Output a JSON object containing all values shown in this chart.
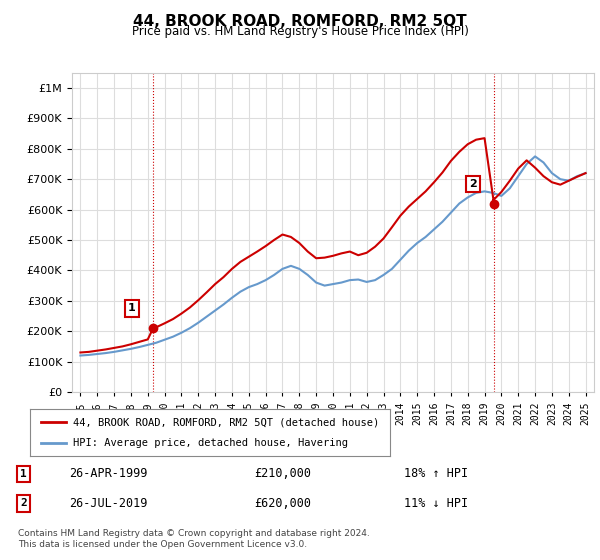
{
  "title": "44, BROOK ROAD, ROMFORD, RM2 5QT",
  "subtitle": "Price paid vs. HM Land Registry's House Price Index (HPI)",
  "legend_entry1": "44, BROOK ROAD, ROMFORD, RM2 5QT (detached house)",
  "legend_entry2": "HPI: Average price, detached house, Havering",
  "sale1_label": "1",
  "sale1_date": "26-APR-1999",
  "sale1_price": "£210,000",
  "sale1_hpi": "18% ↑ HPI",
  "sale2_label": "2",
  "sale2_date": "26-JUL-2019",
  "sale2_price": "£620,000",
  "sale2_hpi": "11% ↓ HPI",
  "footnote": "Contains HM Land Registry data © Crown copyright and database right 2024.\nThis data is licensed under the Open Government Licence v3.0.",
  "red_color": "#cc0000",
  "blue_color": "#6699cc",
  "grid_color": "#dddddd",
  "background_color": "#ffffff",
  "sale1_year": 1999.32,
  "sale1_value": 210000,
  "sale2_year": 2019.56,
  "sale2_value": 620000,
  "ylim": [
    0,
    1050000
  ],
  "xlim": [
    1994.5,
    2025.5
  ],
  "hpi_x": [
    1995,
    1995.5,
    1996,
    1996.5,
    1997,
    1997.5,
    1998,
    1998.5,
    1999,
    1999.5,
    2000,
    2000.5,
    2001,
    2001.5,
    2002,
    2002.5,
    2003,
    2003.5,
    2004,
    2004.5,
    2005,
    2005.5,
    2006,
    2006.5,
    2007,
    2007.5,
    2008,
    2008.5,
    2009,
    2009.5,
    2010,
    2010.5,
    2011,
    2011.5,
    2012,
    2012.5,
    2013,
    2013.5,
    2014,
    2014.5,
    2015,
    2015.5,
    2016,
    2016.5,
    2017,
    2017.5,
    2018,
    2018.5,
    2019,
    2019.5,
    2020,
    2020.5,
    2021,
    2021.5,
    2022,
    2022.5,
    2023,
    2023.5,
    2024,
    2024.5,
    2025
  ],
  "hpi_y": [
    120000,
    122000,
    125000,
    128000,
    132000,
    137000,
    142000,
    148000,
    155000,
    162000,
    172000,
    182000,
    195000,
    210000,
    228000,
    248000,
    268000,
    288000,
    310000,
    330000,
    345000,
    355000,
    368000,
    385000,
    405000,
    415000,
    405000,
    385000,
    360000,
    350000,
    355000,
    360000,
    368000,
    370000,
    362000,
    368000,
    385000,
    405000,
    435000,
    465000,
    490000,
    510000,
    535000,
    560000,
    590000,
    620000,
    640000,
    655000,
    660000,
    655000,
    645000,
    670000,
    710000,
    750000,
    775000,
    755000,
    720000,
    700000,
    695000,
    710000,
    720000
  ],
  "red_x": [
    1995,
    1995.5,
    1996,
    1996.5,
    1997,
    1997.5,
    1998,
    1998.5,
    1999,
    1999.32,
    1999.5,
    2000,
    2000.5,
    2001,
    2001.5,
    2002,
    2002.5,
    2003,
    2003.5,
    2004,
    2004.5,
    2005,
    2005.5,
    2006,
    2006.5,
    2007,
    2007.5,
    2008,
    2008.5,
    2009,
    2009.5,
    2010,
    2010.5,
    2011,
    2011.5,
    2012,
    2012.5,
    2013,
    2013.5,
    2014,
    2014.5,
    2015,
    2015.5,
    2016,
    2016.5,
    2017,
    2017.5,
    2018,
    2018.5,
    2019,
    2019.56,
    2019.5,
    2020,
    2020.5,
    2021,
    2021.5,
    2022,
    2022.5,
    2023,
    2023.5,
    2024,
    2024.5,
    2025
  ],
  "red_y": [
    130000,
    132000,
    136000,
    140000,
    145000,
    150000,
    157000,
    165000,
    173000,
    210000,
    213000,
    226000,
    240000,
    258000,
    278000,
    302000,
    328000,
    355000,
    378000,
    405000,
    428000,
    445000,
    462000,
    480000,
    500000,
    518000,
    510000,
    490000,
    462000,
    440000,
    442000,
    448000,
    456000,
    462000,
    450000,
    458000,
    478000,
    505000,
    542000,
    580000,
    610000,
    635000,
    660000,
    690000,
    722000,
    760000,
    790000,
    815000,
    830000,
    835000,
    620000,
    630000,
    658000,
    695000,
    735000,
    762000,
    738000,
    710000,
    690000,
    682000,
    695000,
    708000,
    720000
  ]
}
